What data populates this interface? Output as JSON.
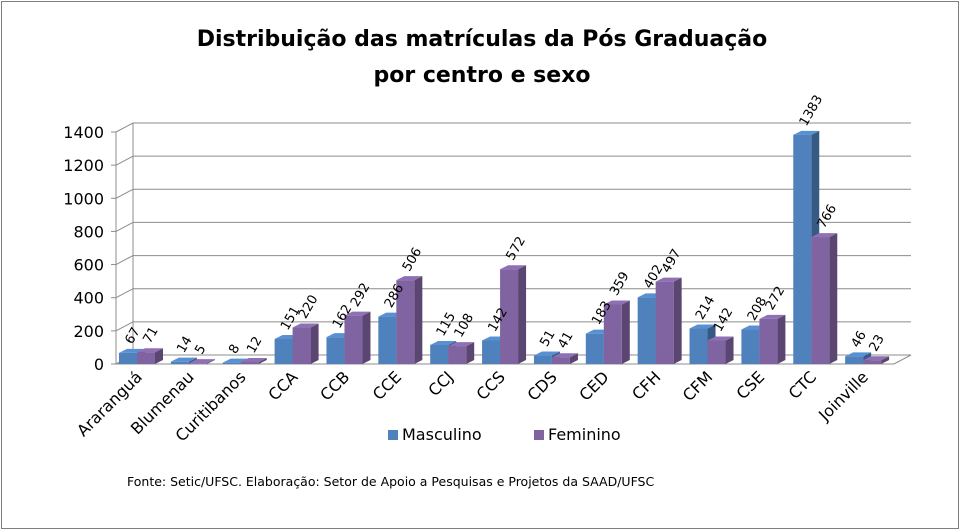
{
  "chart_data": {
    "type": "bar",
    "title": [
      "Distribuição das matrículas da Pós Graduação",
      "por centro e sexo"
    ],
    "categories": [
      "Araranguá",
      "Blumenau",
      "Curitibanos",
      "CCA",
      "CCB",
      "CCE",
      "CCJ",
      "CCS",
      "CDS",
      "CED",
      "CFH",
      "CFM",
      "CSE",
      "CTC",
      "Joinville"
    ],
    "series": [
      {
        "name": "Masculino",
        "color": "#4f81bd",
        "values": [
          67,
          14,
          8,
          151,
          162,
          286,
          115,
          142,
          51,
          183,
          402,
          214,
          208,
          1383,
          46
        ]
      },
      {
        "name": "Feminino",
        "color": "#8064a2",
        "values": [
          71,
          5,
          12,
          220,
          292,
          506,
          108,
          572,
          41,
          359,
          497,
          142,
          272,
          766,
          23
        ]
      }
    ],
    "ylim": [
      0,
      1400
    ],
    "yticks": [
      0,
      200,
      400,
      600,
      800,
      1000,
      1200,
      1400
    ],
    "grid": true,
    "legend_position": "bottom",
    "three_d": true,
    "data_labels": true
  },
  "source_note": "Fonte: Setic/UFSC. Elaboração: Setor de Apoio a Pesquisas e Projetos da SAAD/UFSC"
}
